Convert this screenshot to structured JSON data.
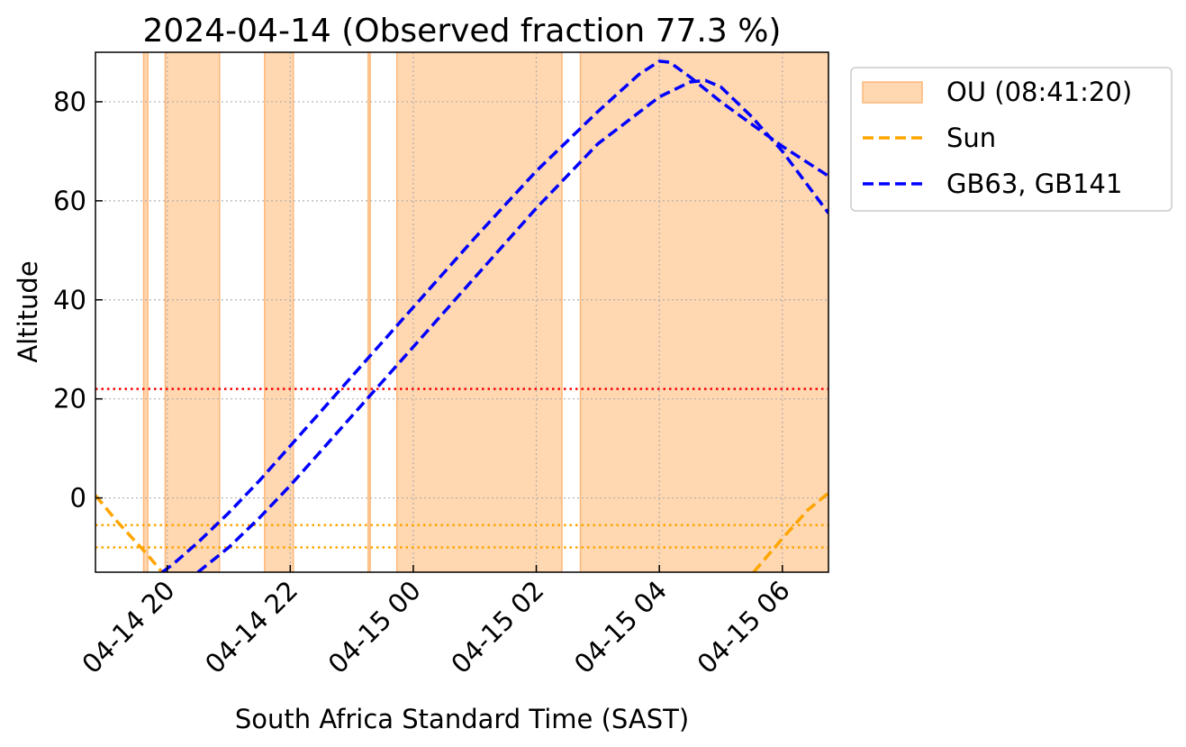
{
  "chart_data": {
    "type": "line",
    "title": "2024-04-14 (Observed fraction 77.3 %)",
    "xlabel": "South Africa Standard Time (SAST)",
    "ylabel": "Altitude",
    "xlim": [
      "2024-04-14 18:50",
      "2024-04-15 06:45"
    ],
    "ylim": [
      -15,
      90
    ],
    "grid": true,
    "grid_style": "dotted",
    "legend_position": "outside-top-right",
    "x_ticks": [
      {
        "value": "2024-04-14 20:00",
        "label": "04-14 20"
      },
      {
        "value": "2024-04-14 22:00",
        "label": "04-14 22"
      },
      {
        "value": "2024-04-15 00:00",
        "label": "04-15 00"
      },
      {
        "value": "2024-04-15 02:00",
        "label": "04-15 02"
      },
      {
        "value": "2024-04-15 04:00",
        "label": "04-15 04"
      },
      {
        "value": "2024-04-15 06:00",
        "label": "04-15 06"
      }
    ],
    "y_ticks": [
      0,
      20,
      40,
      60,
      80
    ],
    "shaded_intervals": {
      "name": "OU (08:41:20)",
      "color": "#ffd7b0",
      "edge_color": "#fdb87a",
      "intervals": [
        [
          "2024-04-14 19:37",
          "2024-04-14 19:41"
        ],
        [
          "2024-04-14 19:58",
          "2024-04-14 20:51"
        ],
        [
          "2024-04-14 21:35",
          "2024-04-14 22:03"
        ],
        [
          "2024-04-14 23:16",
          "2024-04-14 23:18"
        ],
        [
          "2024-04-14 23:44",
          "2024-04-15 02:25"
        ],
        [
          "2024-04-15 02:43",
          "2024-04-15 06:45"
        ]
      ]
    },
    "series": [
      {
        "name": "Sun",
        "color": "#ffa500",
        "style": "dashed",
        "segments": [
          [
            {
              "x": "2024-04-14 18:50",
              "y": 0.5
            },
            {
              "x": "2024-04-14 19:10",
              "y": -4.5
            },
            {
              "x": "2024-04-14 19:40",
              "y": -11.3
            },
            {
              "x": "2024-04-14 19:55",
              "y": -15
            }
          ],
          [
            {
              "x": "2024-04-15 05:32",
              "y": -15
            },
            {
              "x": "2024-04-15 06:00",
              "y": -8.2
            },
            {
              "x": "2024-04-15 06:25",
              "y": -2.4
            },
            {
              "x": "2024-04-15 06:45",
              "y": 1.0
            }
          ]
        ]
      },
      {
        "name": "GB63",
        "color": "#0000ff",
        "style": "dashed",
        "segments": [
          [
            {
              "x": "2024-04-14 19:55",
              "y": -15
            },
            {
              "x": "2024-04-14 20:05",
              "y": -13.5
            },
            {
              "x": "2024-04-14 20:30",
              "y": -9.0
            },
            {
              "x": "2024-04-14 21:00",
              "y": -3.0
            },
            {
              "x": "2024-04-14 21:30",
              "y": 3.5
            },
            {
              "x": "2024-04-14 22:00",
              "y": 10.5
            },
            {
              "x": "2024-04-14 22:30",
              "y": 17.5
            },
            {
              "x": "2024-04-14 23:00",
              "y": 24.5
            },
            {
              "x": "2024-04-15 00:00",
              "y": 38.5
            },
            {
              "x": "2024-04-15 01:00",
              "y": 52.5
            },
            {
              "x": "2024-04-15 02:00",
              "y": 66.0
            },
            {
              "x": "2024-04-15 03:00",
              "y": 78.0
            },
            {
              "x": "2024-04-15 03:40",
              "y": 85.5
            },
            {
              "x": "2024-04-15 04:00",
              "y": 88.2
            },
            {
              "x": "2024-04-15 04:10",
              "y": 88.0
            },
            {
              "x": "2024-04-15 04:30",
              "y": 85.0
            },
            {
              "x": "2024-04-15 05:00",
              "y": 80.0
            },
            {
              "x": "2024-04-15 05:30",
              "y": 75.5
            },
            {
              "x": "2024-04-15 06:00",
              "y": 71.0
            },
            {
              "x": "2024-04-15 06:45",
              "y": 65.0
            }
          ]
        ]
      },
      {
        "name": "GB141",
        "color": "#0000ff",
        "style": "dashed",
        "segments": [
          [
            {
              "x": "2024-04-14 20:30",
              "y": -15
            },
            {
              "x": "2024-04-14 21:00",
              "y": -10.0
            },
            {
              "x": "2024-04-14 21:30",
              "y": -4.0
            },
            {
              "x": "2024-04-14 22:00",
              "y": 2.5
            },
            {
              "x": "2024-04-14 22:30",
              "y": 9.5
            },
            {
              "x": "2024-04-14 23:00",
              "y": 16.5
            },
            {
              "x": "2024-04-15 00:00",
              "y": 30.5
            },
            {
              "x": "2024-04-15 01:00",
              "y": 44.5
            },
            {
              "x": "2024-04-15 02:00",
              "y": 58.5
            },
            {
              "x": "2024-04-15 03:00",
              "y": 71.5
            },
            {
              "x": "2024-04-15 04:00",
              "y": 81.0
            },
            {
              "x": "2024-04-15 04:30",
              "y": 84.0
            },
            {
              "x": "2024-04-15 04:45",
              "y": 84.3
            },
            {
              "x": "2024-04-15 05:00",
              "y": 83.0
            },
            {
              "x": "2024-04-15 05:30",
              "y": 77.0
            },
            {
              "x": "2024-04-15 06:00",
              "y": 70.0
            },
            {
              "x": "2024-04-15 06:45",
              "y": 57.5
            }
          ]
        ]
      }
    ],
    "reference_lines": [
      {
        "y": 22,
        "color": "#ff0000",
        "style": "dotted"
      },
      {
        "y": -5.5,
        "color": "#ffa500",
        "style": "dotted"
      },
      {
        "y": -10,
        "color": "#ffa500",
        "style": "dotted"
      }
    ],
    "legend": [
      {
        "label": "OU (08:41:20)",
        "kind": "patch",
        "color": "#ffd7b0",
        "edge_color": "#fdb87a"
      },
      {
        "label": "Sun",
        "kind": "line",
        "color": "#ffa500",
        "style": "dashed"
      },
      {
        "label": "GB63, GB141",
        "kind": "line",
        "color": "#0000ff",
        "style": "dashed"
      }
    ]
  }
}
